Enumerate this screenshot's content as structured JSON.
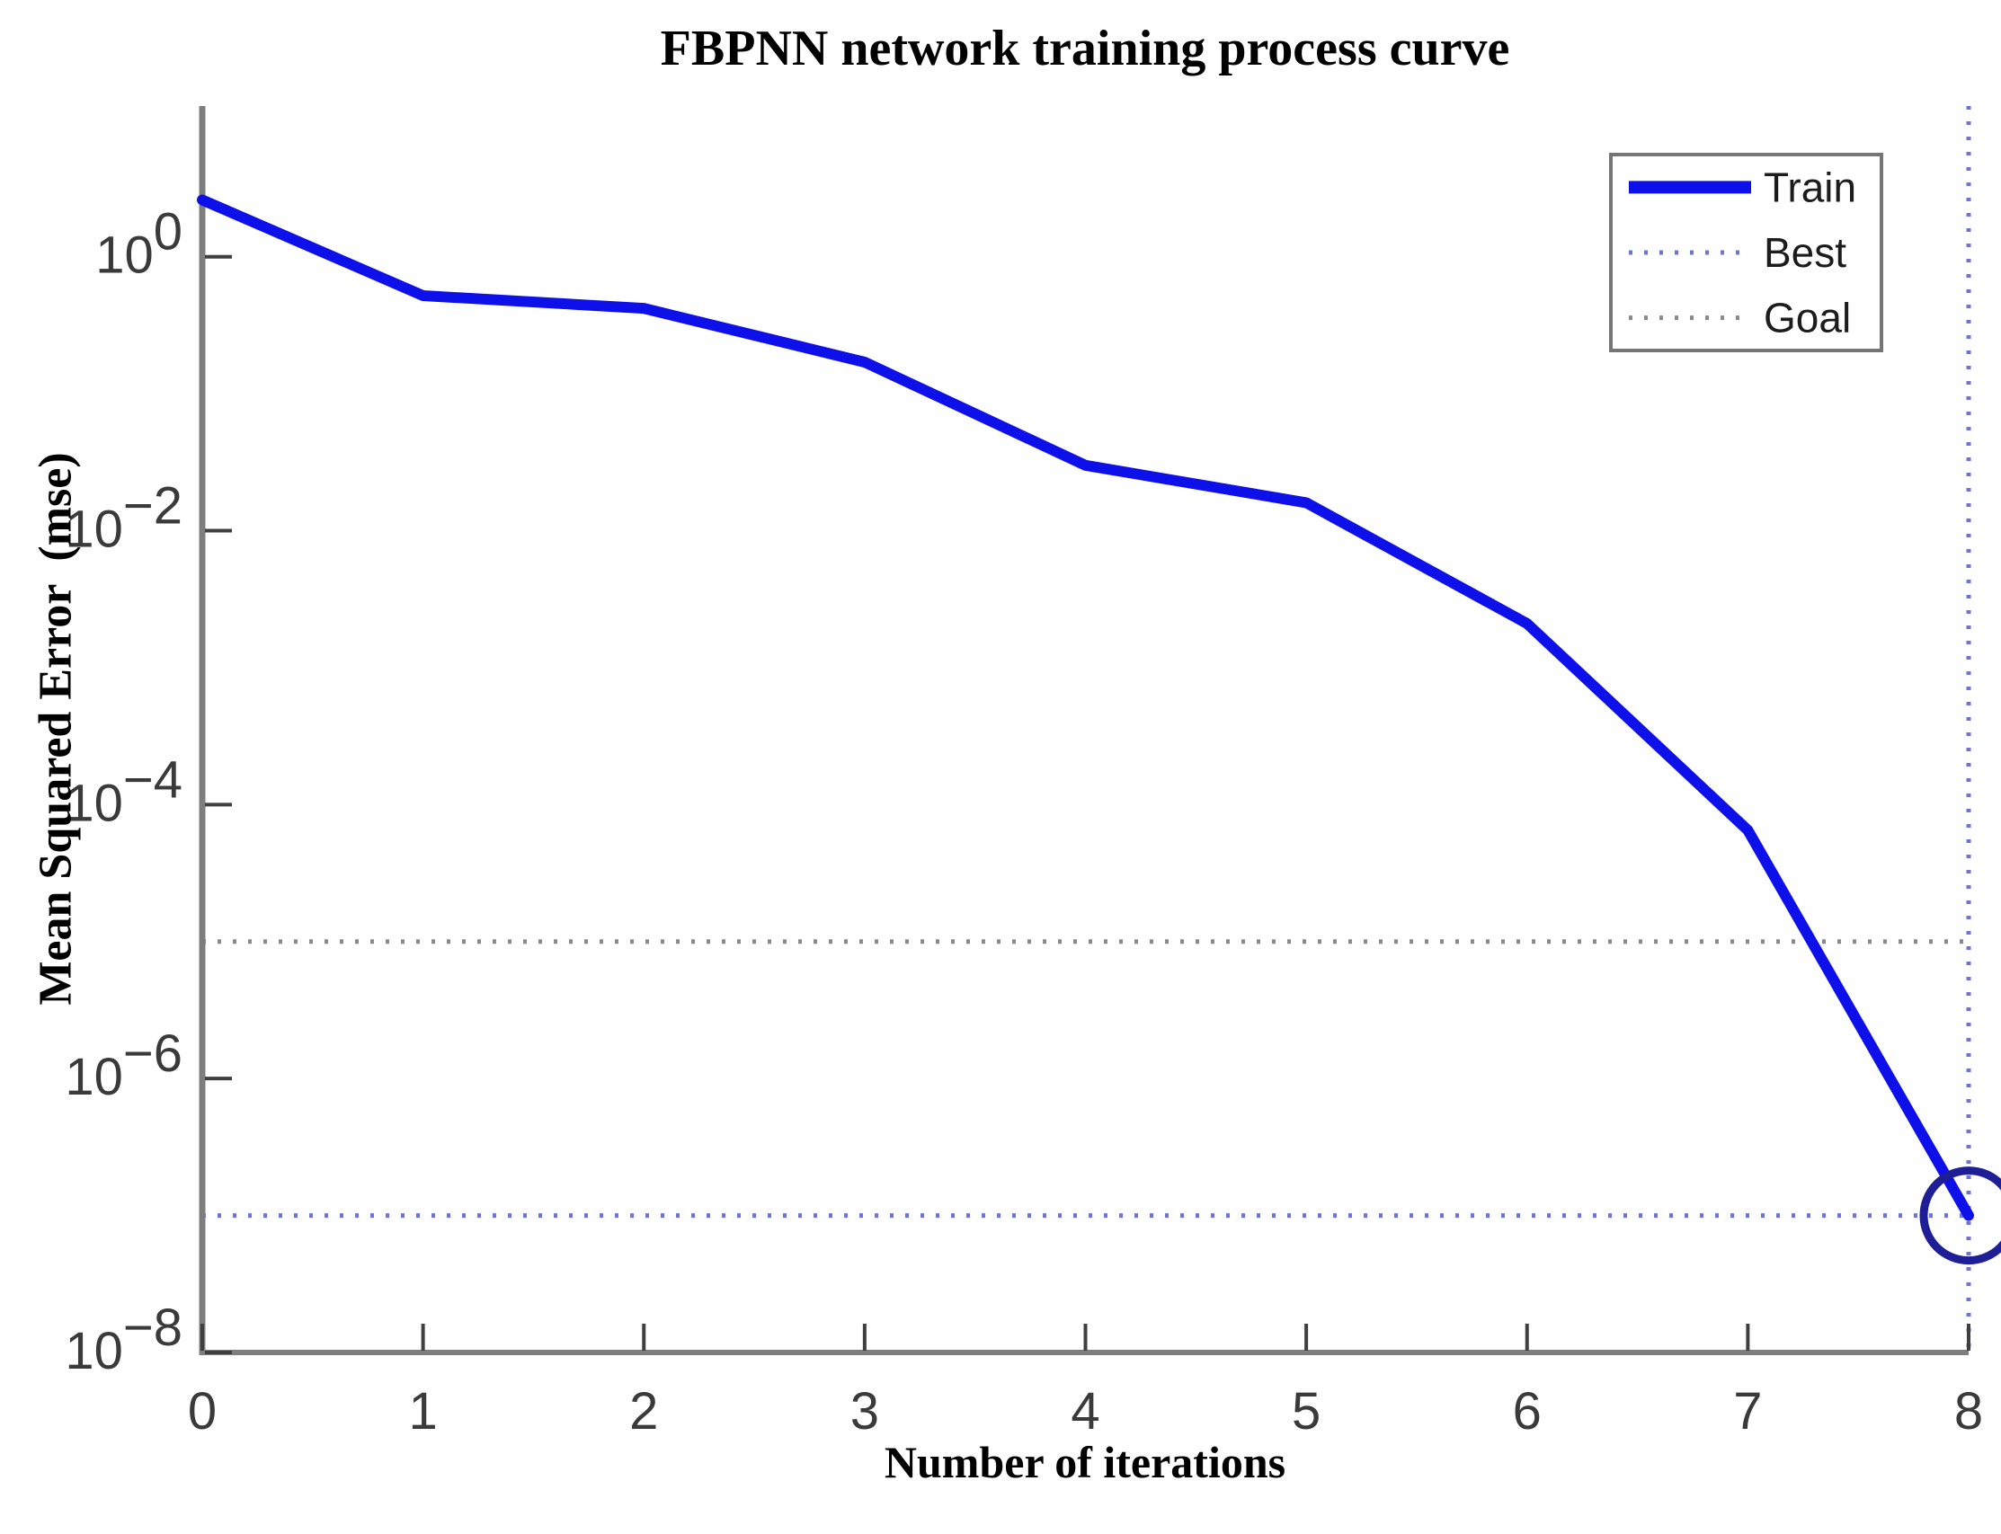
{
  "figure": {
    "title": "FBPNN network training process curve",
    "xlabel": "Number of iterations",
    "ylabel": "Mean Squared Error  (mse)"
  },
  "legend": {
    "position": "upper-right",
    "items": [
      {
        "label": "Train",
        "style": "solid",
        "color": "#0d10e8"
      },
      {
        "label": "Best",
        "style": "dotted",
        "color": "#6d74d8"
      },
      {
        "label": "Goal",
        "style": "dotted",
        "color": "#8a8a8a"
      }
    ]
  },
  "colors": {
    "train": "#0d10e8",
    "best": "#6d74d8",
    "goal": "#8a8a8a",
    "marker": "#1e1e96",
    "axis": "#7e7e7e",
    "tick": "#3f3f3f",
    "legend_border": "#767676"
  },
  "chart_data": {
    "type": "line",
    "title": "FBPNN network training process curve",
    "xlabel": "Number of iterations",
    "ylabel": "Mean Squared Error  (mse)",
    "x_scale": "linear",
    "y_scale": "log",
    "xlim": [
      0,
      8
    ],
    "ylim": [
      1e-08,
      12.6
    ],
    "xticks": [
      0,
      1,
      2,
      3,
      4,
      5,
      6,
      7,
      8
    ],
    "ytick_exponents": [
      0,
      -2,
      -4,
      -6,
      -8
    ],
    "grid": false,
    "legend_position": "upper right",
    "x": [
      0,
      1,
      2,
      3,
      4,
      5,
      6,
      7,
      8
    ],
    "series": [
      {
        "name": "Train",
        "style": "solid",
        "color": "#0d10e8",
        "values": [
          2.6,
          0.52,
          0.42,
          0.17,
          0.03,
          0.016,
          0.0021,
          6.5e-05,
          1e-07
        ]
      }
    ],
    "reference_lines": [
      {
        "name": "Goal",
        "orientation": "horizontal",
        "value": 1e-05,
        "style": "dotted",
        "color": "#8a8a8a"
      },
      {
        "name": "Best",
        "orientation": "horizontal",
        "value": 1e-07,
        "style": "dotted",
        "color": "#6d74d8"
      },
      {
        "name": "Best",
        "orientation": "vertical",
        "value": 8,
        "style": "dotted",
        "color": "#6d74d8"
      }
    ],
    "end_marker": {
      "shape": "circle",
      "x": 8,
      "value": 1e-07,
      "color": "#1e1e96"
    },
    "best_epoch": 8,
    "goal_value": 1e-05,
    "best_value": 1e-07
  }
}
